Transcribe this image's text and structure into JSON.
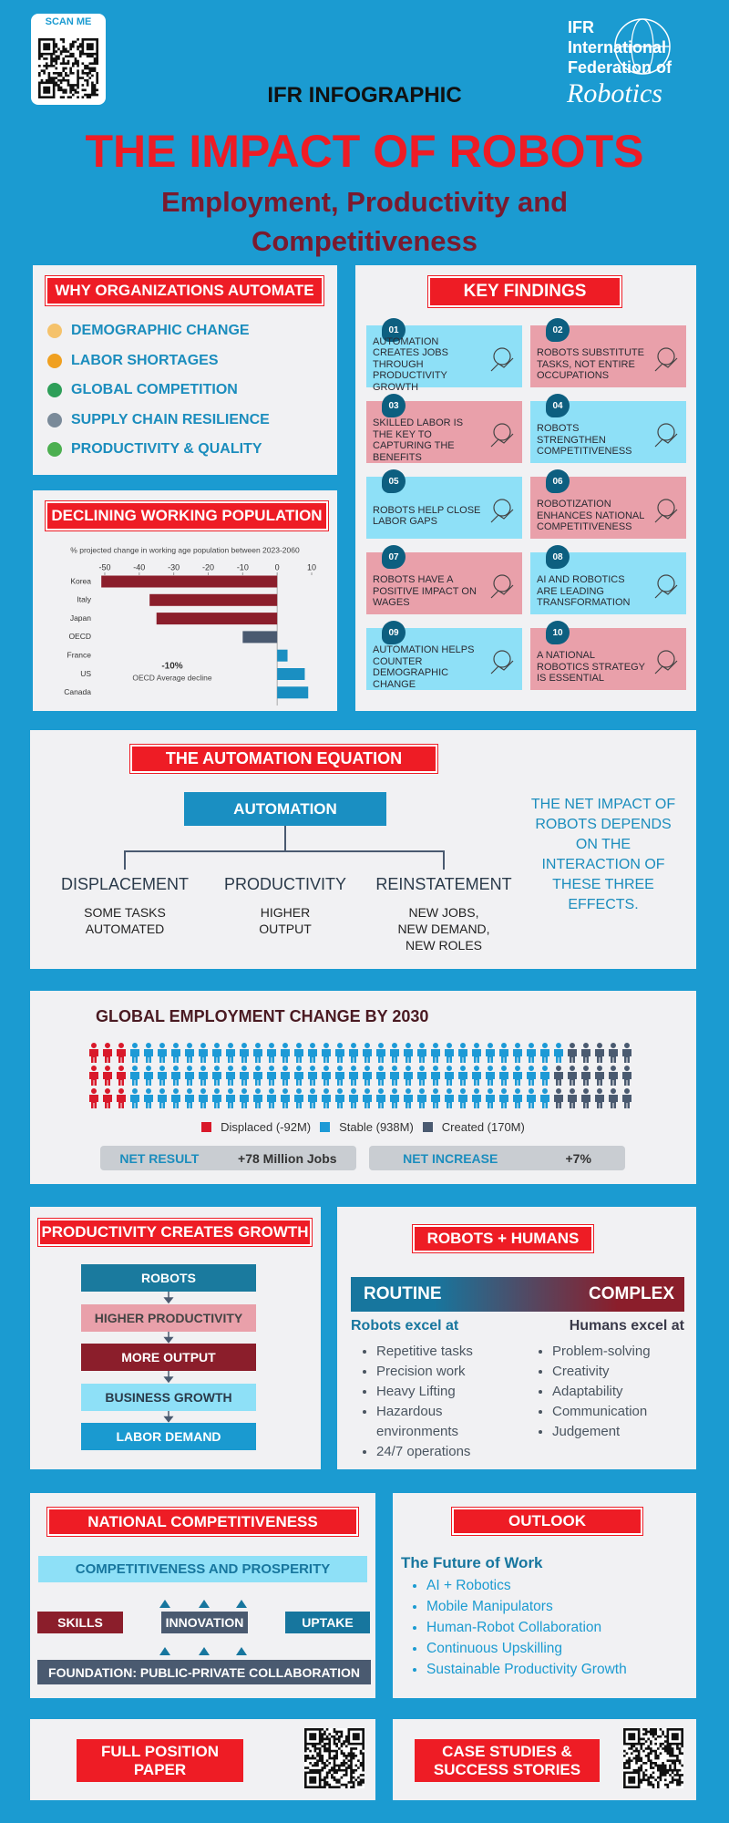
{
  "header": {
    "scan_label": "SCAN ME",
    "kicker": "IFR INFOGRAPHIC",
    "title": "THE IMPACT OF ROBOTS",
    "subtitle": "Employment, Productivity and Competitiveness",
    "logo": [
      "IFR",
      "International",
      "Federation of",
      "Robotics"
    ]
  },
  "why": {
    "title": "WHY ORGANIZATIONS AUTOMATE",
    "items": [
      "DEMOGRAPHIC CHANGE",
      "LABOR SHORTAGES",
      "GLOBAL COMPETITION",
      "SUPPLY CHAIN RESILIENCE",
      "PRODUCTIVITY & QUALITY"
    ]
  },
  "key_findings": {
    "title": "KEY FINDINGS",
    "items": [
      {
        "number": "01",
        "text": "AUTOMATION CREATES JOBS THROUGH PRODUCTIVITY GROWTH"
      },
      {
        "number": "02",
        "text": "ROBOTS SUBSTITUTE TASKS, NOT ENTIRE OCCUPATIONS"
      },
      {
        "number": "03",
        "text": "SKILLED LABOR IS THE KEY TO CAPTURING THE BENEFITS"
      },
      {
        "number": "04",
        "text": "ROBOTS STRENGTHEN COMPETITIVENESS"
      },
      {
        "number": "05",
        "text": "ROBOTS HELP CLOSE LABOR GAPS"
      },
      {
        "number": "06",
        "text": "ROBOTIZATION ENHANCES NATIONAL COMPETITIVENESS"
      },
      {
        "number": "07",
        "text": "ROBOTS HAVE A POSITIVE IMPACT ON WAGES"
      },
      {
        "number": "08",
        "text": "AI AND ROBOTICS ARE LEADING TRANSFORMATION"
      },
      {
        "number": "09",
        "text": "AUTOMATION HELPS COUNTER DEMOGRAPHIC CHANGE"
      },
      {
        "number": "10",
        "text": "A NATIONAL ROBOTICS STRATEGY IS ESSENTIAL"
      }
    ]
  },
  "chart_data": [
    {
      "type": "bar",
      "orientation": "horizontal",
      "title": "DECLINING WORKING POPULATION",
      "subtitle": "% projected change in working age population between 2023-2060",
      "categories": [
        "Korea",
        "Italy",
        "Japan",
        "OECD",
        "France",
        "US",
        "Canada"
      ],
      "values": [
        -51,
        -37,
        -35,
        -10,
        3,
        8,
        9
      ],
      "colors": [
        "#8b1e2b",
        "#8b1e2b",
        "#8b1e2b",
        "#4a5a70",
        "#1a8fc2",
        "#1a8fc2",
        "#1a8fc2"
      ],
      "xlim": [
        -52,
        11
      ],
      "xticks": [
        -50,
        -40,
        -30,
        -20,
        -10,
        0,
        10
      ],
      "annotation": {
        "label": "-10%",
        "text": "OECD Average decline"
      }
    },
    {
      "type": "pictogram",
      "title": "GLOBAL EMPLOYMENT CHANGE BY 2030",
      "series": [
        {
          "name": "Displaced (-92M)",
          "color": "#d9192a",
          "value": -92
        },
        {
          "name": "Stable (938M)",
          "color": "#1d9ad6",
          "value": 938
        },
        {
          "name": "Created (170M)",
          "color": "#4a5a70",
          "value": 170
        }
      ],
      "summary": [
        {
          "label": "NET RESULT",
          "text": "+78 Million Jobs"
        },
        {
          "label": "NET INCREASE",
          "text": "+7%"
        }
      ]
    }
  ],
  "equation": {
    "title": "THE AUTOMATION EQUATION",
    "root": "AUTOMATION",
    "branches": [
      {
        "label": "DISPLACEMENT",
        "lines": [
          "SOME TASKS",
          "AUTOMATED"
        ]
      },
      {
        "label": "PRODUCTIVITY",
        "lines": [
          "HIGHER",
          "OUTPUT"
        ]
      },
      {
        "label": "REINSTATEMENT",
        "lines": [
          "NEW JOBS,",
          "NEW DEMAND,",
          "NEW ROLES"
        ]
      }
    ],
    "note": "THE NET IMPACT OF ROBOTS DEPENDS ON THE INTERACTION OF THESE THREE EFFECTS."
  },
  "productivity": {
    "title": "PRODUCTIVITY CREATES GROWTH",
    "steps": [
      "ROBOTS",
      "HIGHER PRODUCTIVITY",
      "MORE OUTPUT",
      "BUSINESS GROWTH",
      "LABOR DEMAND"
    ]
  },
  "robots_humans": {
    "title": "ROBOTS + HUMANS",
    "left_band": "ROUTINE",
    "right_band": "COMPLEX",
    "robots": {
      "heading": "Robots excel at",
      "items": [
        "Repetitive tasks",
        "Precision work",
        "Heavy Lifting",
        "Hazardous environments",
        "24/7 operations"
      ]
    },
    "humans": {
      "heading": "Humans excel at",
      "items": [
        "Problem-solving",
        "Creativity",
        "Adaptability",
        "Communication",
        "Judgement"
      ]
    }
  },
  "competitiveness": {
    "title": "NATIONAL COMPETITIVENESS",
    "top": "COMPETITIVENESS AND PROSPERITY",
    "pillars": [
      "SKILLS",
      "INNOVATION",
      "UPTAKE"
    ],
    "foundation": "FOUNDATION: PUBLIC-PRIVATE COLLABORATION"
  },
  "outlook": {
    "title": "OUTLOOK",
    "heading": "The Future of Work",
    "items": [
      "AI + Robotics",
      "Mobile Manipulators",
      "Human-Robot Collaboration",
      "Continuous Upskilling",
      "Sustainable Productivity Growth"
    ]
  },
  "footer": {
    "paper": "FULL POSITION PAPER",
    "cases": "CASE STUDIES & SUCCESS STORIES"
  }
}
